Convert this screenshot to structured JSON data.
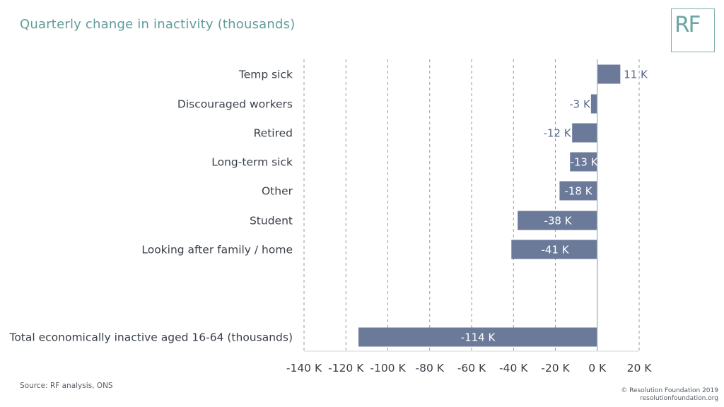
{
  "header": {
    "title": "Quarterly change in inactivity (thousands)",
    "logo_text": "RF"
  },
  "footer": {
    "source": "Source: RF analysis, ONS",
    "copyright": "© Resolution Foundation 2019",
    "website": "resolutionfoundation.org"
  },
  "colors": {
    "bar": "#6b7a99",
    "title": "#5f9c9a",
    "axis": "#9fc4c2",
    "grid": "#9a9a9a",
    "label_inside": "#ffffff",
    "label_outside": "#5a6a8a"
  },
  "chart_data": {
    "type": "bar",
    "orientation": "horizontal",
    "title": "Quarterly change in inactivity (thousands)",
    "categories": [
      "Temp sick",
      "Discouraged workers",
      "Retired",
      "Long-term sick",
      "Other",
      "Student",
      "Looking after family / home",
      "Total economically inactive aged 16-64 (thousands)"
    ],
    "values": [
      11,
      -3,
      -12,
      -13,
      -18,
      -38,
      -41,
      -114
    ],
    "data_labels": [
      "11 K",
      "-3 K",
      "-12 K",
      "-13 K",
      "-18 K",
      "-38 K",
      "-41 K",
      "-114 K"
    ],
    "xlim": [
      -140,
      20
    ],
    "xticks": [
      -140,
      -120,
      -100,
      -80,
      -60,
      -40,
      -20,
      0,
      20
    ],
    "xtick_labels": [
      "-140 K",
      "-120 K",
      "-100 K",
      "-80 K",
      "-60 K",
      "-40 K",
      "-20 K",
      "0 K",
      "20 K"
    ],
    "grid": "vertical dashed",
    "legend": "none"
  }
}
